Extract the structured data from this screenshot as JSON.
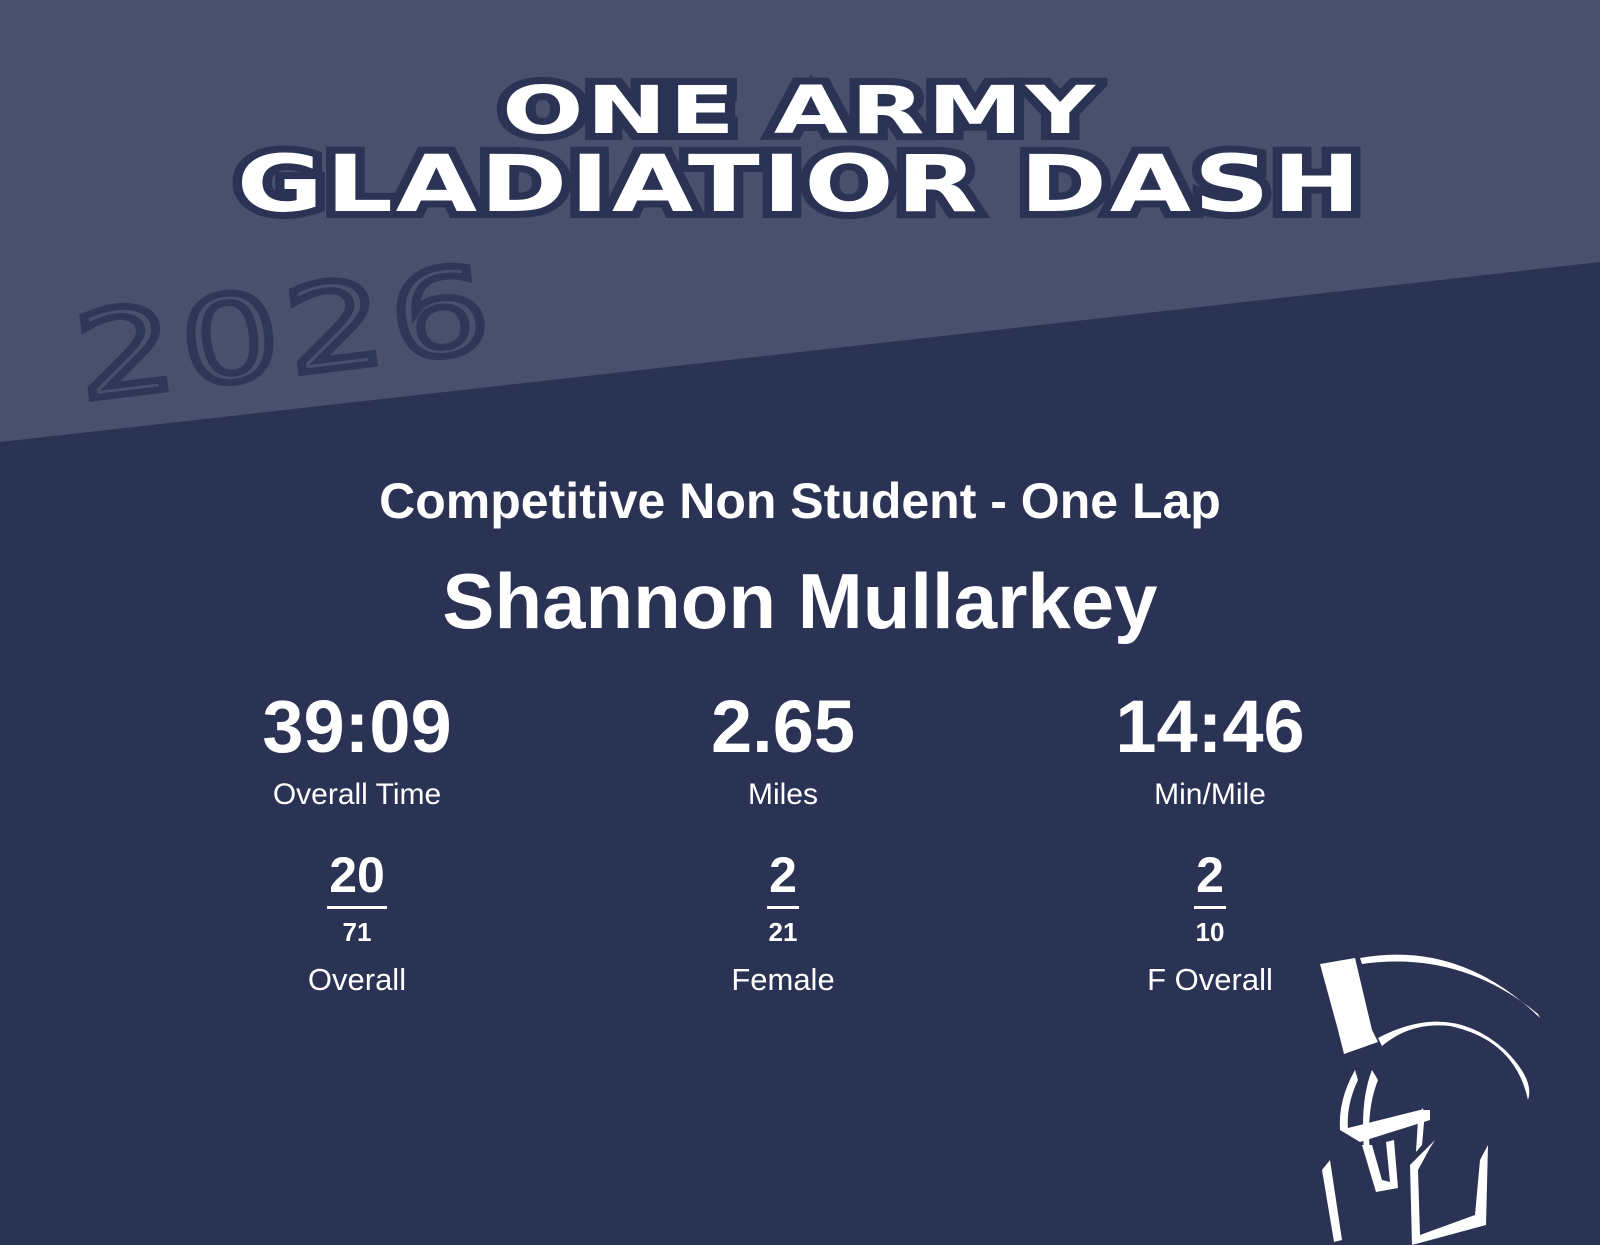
{
  "colors": {
    "top_band": "#4a4f6e",
    "background": "#2b3354",
    "text": "#ffffff"
  },
  "header": {
    "line1": "ONE ARMY",
    "line2": "GLADIATIOR DASH",
    "year": "2026"
  },
  "division": "Competitive Non Student - One Lap",
  "athlete_name": "Shannon Mullarkey",
  "stats": [
    {
      "value": "39:09",
      "label": "Overall Time"
    },
    {
      "value": "2.65",
      "label": "Miles"
    },
    {
      "value": "14:46",
      "label": "Min/Mile"
    }
  ],
  "ranks": [
    {
      "place": "20",
      "total": "71",
      "label": "Overall"
    },
    {
      "place": "2",
      "total": "21",
      "label": "Female"
    },
    {
      "place": "2",
      "total": "10",
      "label": "F Overall"
    }
  ],
  "logo": {
    "icon": "spartan-helmet-icon"
  }
}
